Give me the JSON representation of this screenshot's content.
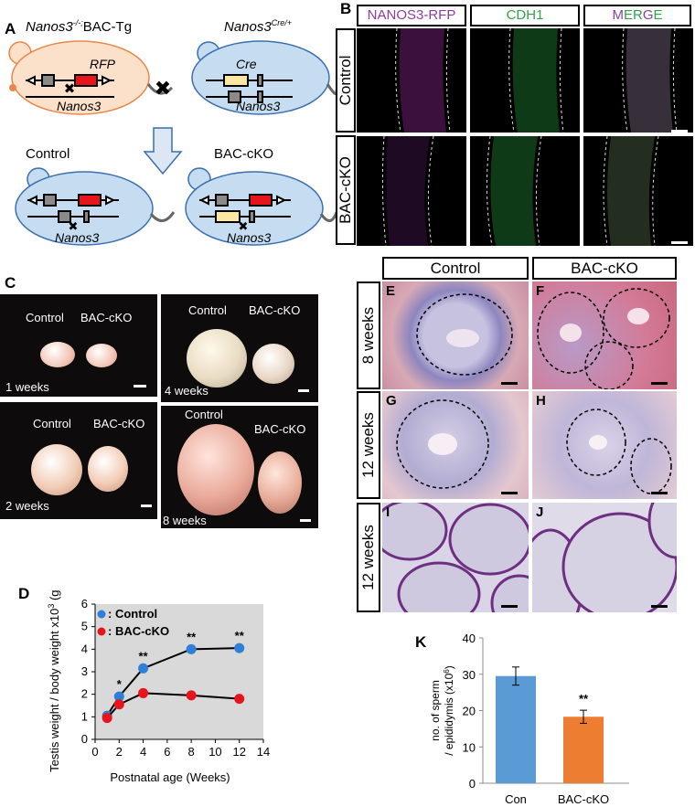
{
  "panel_a": {
    "label": "A",
    "left_mouse_title_prefix": "Nanos3",
    "left_mouse_title_sup": "-/-;",
    "left_mouse_title_suffix": "BAC-Tg",
    "right_mouse_title_prefix": "Nanos3",
    "right_mouse_title_sup": "Cre/+",
    "rfp_label": "RFP",
    "cre_label": "Cre",
    "gene_label": "Nanos3",
    "cross_symbol": "✖",
    "control_label": "Control",
    "cko_label": "BAC-cKO",
    "colors": {
      "mouse_orange": "#fbe1c9",
      "mouse_blue": "#c5dcf1",
      "rfp_red": "#e8141b",
      "cre_yellow": "#fbe7a1",
      "exon_gray": "#8a8a8a"
    }
  },
  "panel_b": {
    "label": "B",
    "headers": [
      {
        "text": "NANOS3-RFP",
        "color": "#8e3d9f"
      },
      {
        "text": "CDH1",
        "color": "#2ea34a"
      }
    ],
    "merge_parts": [
      {
        "text": "M",
        "color": "#8e3d9f"
      },
      {
        "text": "ER",
        "color": "#2ea34a"
      },
      {
        "text": "G",
        "color": "#8e3d9f"
      },
      {
        "text": "E",
        "color": "#2ea34a"
      }
    ],
    "rows": [
      "Control",
      "BAC-cKO"
    ]
  },
  "panel_c": {
    "label": "C",
    "photos": [
      {
        "left_label": "Control",
        "right_label": "BAC-cKO",
        "age": "1 weeks"
      },
      {
        "left_label": "Control",
        "right_label": "BAC-cKO",
        "age": "4 weeks"
      },
      {
        "left_label": "Control",
        "right_label": "BAC-cKO",
        "age": "2 weeks"
      },
      {
        "left_label": "Control",
        "right_label": "BAC-cKO",
        "age": "8 weeks"
      }
    ]
  },
  "panel_efij": {
    "col_headers": [
      "Control",
      "BAC-cKO"
    ],
    "row_labels": [
      "8 weeks",
      "12 weeks",
      "12 weeks"
    ],
    "tiles": [
      "E",
      "F",
      "G",
      "H",
      "I",
      "J"
    ]
  },
  "panel_d": {
    "label": "D",
    "legend": [
      ": Control",
      ": BAC-cKO"
    ],
    "significance": [
      "*",
      "**",
      "**",
      "**"
    ],
    "chart_data": {
      "type": "line",
      "xlabel": "Postnatal age (Weeks)",
      "ylabel": "Testis weight / body weight x10",
      "ylabel_sup": "3",
      "ylabel_unit": " (g)",
      "xlim": [
        0,
        14
      ],
      "ylim": [
        0,
        6
      ],
      "xticks": [
        0,
        2,
        4,
        6,
        8,
        10,
        12,
        14
      ],
      "yticks": [
        0,
        1,
        2,
        3,
        4,
        5,
        6
      ],
      "grid": false,
      "legend_position": "top-left",
      "x": [
        1,
        2,
        4,
        8,
        12
      ],
      "series": [
        {
          "name": "Control",
          "color": "#2f7ed8",
          "values": [
            1.05,
            1.9,
            3.15,
            4.0,
            4.05
          ]
        },
        {
          "name": "BAC-cKO",
          "color": "#e8141b",
          "values": [
            0.95,
            1.55,
            2.05,
            1.95,
            1.8
          ]
        }
      ],
      "significance_x": [
        2,
        4,
        8,
        12
      ]
    }
  },
  "panel_k": {
    "label": "K",
    "chart_data": {
      "type": "bar",
      "categories": [
        "Con",
        "BAC-cKO"
      ],
      "values": [
        29.5,
        18.3
      ],
      "errors": [
        2.5,
        1.8
      ],
      "colors": [
        "#5b9bd5",
        "#ed7d31"
      ],
      "ylabel_line1": "no. of sperm",
      "ylabel_line2": "/ epididymis (x10",
      "ylabel_sup": "6",
      "ylabel_end": ")",
      "ylim": [
        0,
        40
      ],
      "yticks": [
        0,
        10,
        20,
        30,
        40
      ],
      "grid": false,
      "annotation": "**"
    }
  }
}
